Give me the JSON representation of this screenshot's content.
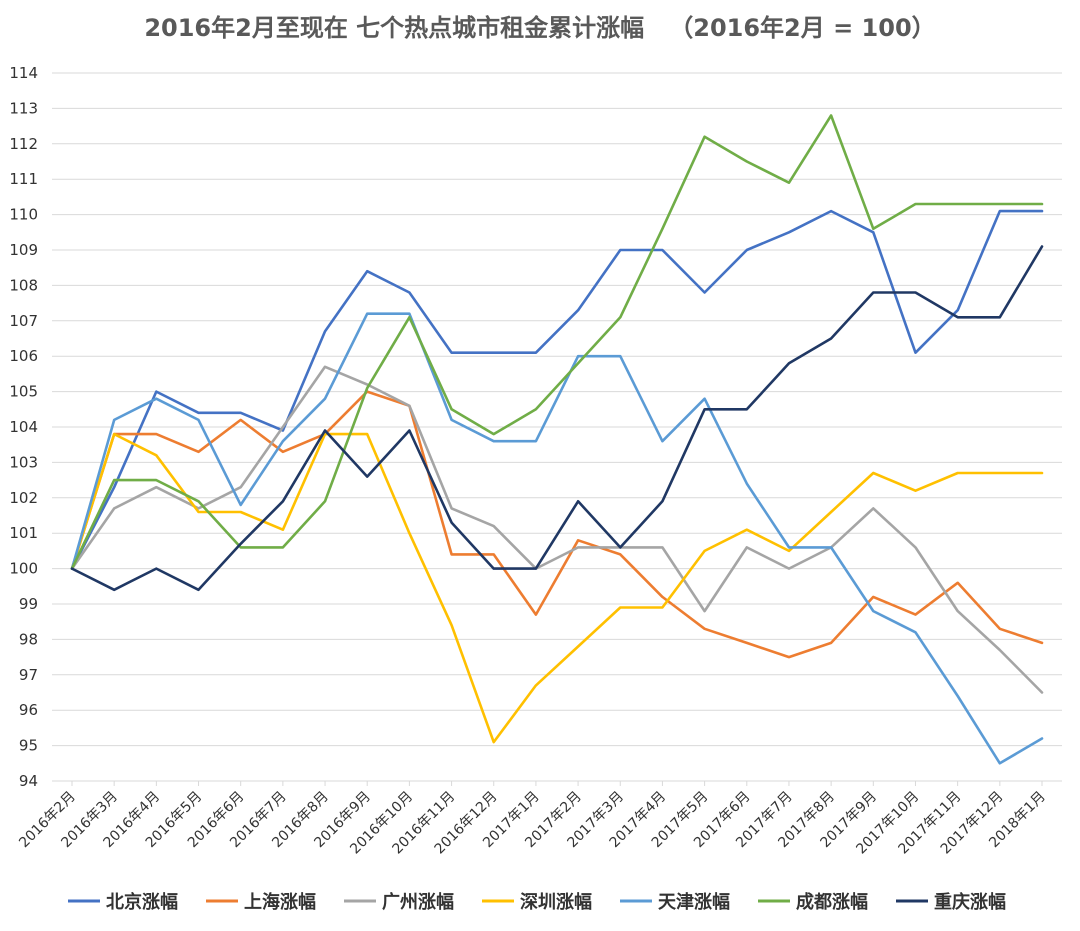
{
  "chart_data": {
    "type": "line",
    "title": "2016年2月至现在 七个热点城市租金累计涨幅   （2016年2月 = 100）",
    "ylim": [
      94,
      114
    ],
    "yticks": [
      94,
      95,
      96,
      97,
      98,
      99,
      100,
      101,
      102,
      103,
      104,
      105,
      106,
      107,
      108,
      109,
      110,
      111,
      112,
      113,
      114
    ],
    "grid": true,
    "legend_position": "bottom",
    "categories": [
      "2016年2月",
      "2016年3月",
      "2016年4月",
      "2016年5月",
      "2016年6月",
      "2016年7月",
      "2016年8月",
      "2016年9月",
      "2016年10月",
      "2016年11月",
      "2016年12月",
      "2017年1月",
      "2017年2月",
      "2017年3月",
      "2017年4月",
      "2017年5月",
      "2017年6月",
      "2017年7月",
      "2017年8月",
      "2017年9月",
      "2017年10月",
      "2017年11月",
      "2017年12月",
      "2018年1月"
    ],
    "series": [
      {
        "name": "北京涨幅",
        "color": "#4472C4",
        "values": [
          100,
          102.3,
          105.0,
          104.4,
          104.4,
          103.9,
          106.7,
          108.4,
          107.8,
          106.1,
          106.1,
          106.1,
          107.3,
          109.0,
          109.0,
          107.8,
          109.0,
          109.5,
          110.1,
          109.5,
          106.1,
          107.3,
          110.1,
          110.1
        ]
      },
      {
        "name": "上海涨幅",
        "color": "#ED7D31",
        "values": [
          100,
          103.8,
          103.8,
          103.3,
          104.2,
          103.3,
          103.8,
          105.0,
          104.6,
          100.4,
          100.4,
          98.7,
          100.8,
          100.4,
          99.2,
          98.3,
          97.9,
          97.5,
          97.9,
          99.2,
          98.7,
          99.6,
          98.3,
          97.9
        ]
      },
      {
        "name": "广州涨幅",
        "color": "#A5A5A5",
        "values": [
          100,
          101.7,
          102.3,
          101.7,
          102.3,
          104.0,
          105.7,
          105.2,
          104.6,
          101.7,
          101.2,
          100.0,
          100.6,
          100.6,
          100.6,
          98.8,
          100.6,
          100.0,
          100.6,
          101.7,
          100.6,
          98.8,
          97.7,
          96.5
        ]
      },
      {
        "name": "深圳涨幅",
        "color": "#FFC000",
        "values": [
          100,
          103.8,
          103.2,
          101.6,
          101.6,
          101.1,
          103.8,
          103.8,
          101.0,
          98.4,
          95.1,
          96.7,
          97.8,
          98.9,
          98.9,
          100.5,
          101.1,
          100.5,
          101.6,
          102.7,
          102.2,
          102.7,
          102.7,
          102.7
        ]
      },
      {
        "name": "天津涨幅",
        "color": "#5B9BD5",
        "values": [
          100,
          104.2,
          104.8,
          104.2,
          101.8,
          103.6,
          104.8,
          107.2,
          107.2,
          104.2,
          103.6,
          103.6,
          106.0,
          106.0,
          103.6,
          104.8,
          102.4,
          100.6,
          100.6,
          98.8,
          98.2,
          96.4,
          94.5,
          95.2
        ]
      },
      {
        "name": "成都涨幅",
        "color": "#70AD47",
        "values": [
          100,
          102.5,
          102.5,
          101.9,
          100.6,
          100.6,
          101.9,
          105.1,
          107.1,
          104.5,
          103.8,
          104.5,
          105.8,
          107.1,
          109.6,
          112.2,
          111.5,
          110.9,
          112.8,
          109.6,
          110.3,
          110.3,
          110.3,
          110.3
        ]
      },
      {
        "name": "重庆涨幅",
        "color": "#203864",
        "values": [
          100,
          99.4,
          100.0,
          99.4,
          100.7,
          101.9,
          103.9,
          102.6,
          103.9,
          101.3,
          100.0,
          100.0,
          101.9,
          100.6,
          101.9,
          104.5,
          104.5,
          105.8,
          106.5,
          107.8,
          107.8,
          107.1,
          107.1,
          109.1
        ]
      }
    ]
  }
}
